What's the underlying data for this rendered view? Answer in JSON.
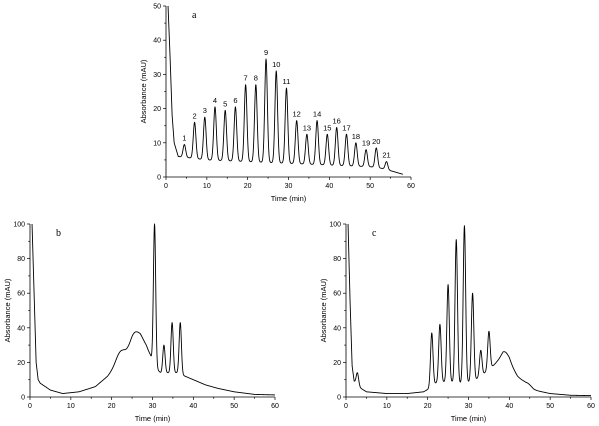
{
  "chart_data": [
    {
      "type": "line",
      "panel_label": "a",
      "xlabel": "Time (min)",
      "ylabel": "Absorbance (mAU)",
      "xlim": [
        0,
        60
      ],
      "ylim": [
        0,
        50
      ],
      "xticks": [
        "0",
        "10",
        "20",
        "30",
        "40",
        "50",
        "60"
      ],
      "yticks": [
        "0",
        "10",
        "20",
        "30",
        "40",
        "50"
      ],
      "grid": false,
      "baseline": [
        [
          0.5,
          50
        ],
        [
          1.0,
          35
        ],
        [
          1.5,
          18
        ],
        [
          2.0,
          10
        ],
        [
          3.0,
          6
        ],
        [
          10,
          5
        ],
        [
          20,
          4.5
        ],
        [
          30,
          4
        ],
        [
          40,
          3.5
        ],
        [
          50,
          3
        ],
        [
          53,
          2.5
        ],
        [
          56,
          1.5
        ],
        [
          58,
          0.8
        ]
      ],
      "peaks": [
        {
          "label": "1",
          "x": 4.5,
          "y": 9.5
        },
        {
          "label": "2",
          "x": 7.0,
          "y": 16
        },
        {
          "label": "3",
          "x": 9.5,
          "y": 17.5
        },
        {
          "label": "4",
          "x": 12.0,
          "y": 20.5
        },
        {
          "label": "5",
          "x": 14.5,
          "y": 19.5
        },
        {
          "label": "6",
          "x": 17.0,
          "y": 20.5
        },
        {
          "label": "7",
          "x": 19.5,
          "y": 27
        },
        {
          "label": "8",
          "x": 22.0,
          "y": 27
        },
        {
          "label": "9",
          "x": 24.5,
          "y": 34.5
        },
        {
          "label": "10",
          "x": 27.0,
          "y": 31
        },
        {
          "label": "11",
          "x": 29.5,
          "y": 26
        },
        {
          "label": "12",
          "x": 32.0,
          "y": 16.5
        },
        {
          "label": "13",
          "x": 34.5,
          "y": 12.5
        },
        {
          "label": "14",
          "x": 37.0,
          "y": 16.5
        },
        {
          "label": "15",
          "x": 39.5,
          "y": 12.5
        },
        {
          "label": "16",
          "x": 41.8,
          "y": 14.5
        },
        {
          "label": "17",
          "x": 44.2,
          "y": 12.5
        },
        {
          "label": "18",
          "x": 46.5,
          "y": 10
        },
        {
          "label": "19",
          "x": 49.0,
          "y": 8
        },
        {
          "label": "20",
          "x": 51.5,
          "y": 8.5
        },
        {
          "label": "21",
          "x": 54.0,
          "y": 4.5
        }
      ]
    },
    {
      "type": "line",
      "panel_label": "b",
      "xlabel": "Time (min)",
      "ylabel": "Absorbance (mAU)",
      "xlim": [
        0,
        60
      ],
      "ylim": [
        0,
        100
      ],
      "xticks": [
        "0",
        "10",
        "20",
        "30",
        "40",
        "50",
        "60"
      ],
      "yticks": [
        "0",
        "20",
        "40",
        "60",
        "80",
        "100"
      ],
      "grid": false,
      "baseline": [
        [
          0.5,
          100
        ],
        [
          1.0,
          60
        ],
        [
          1.5,
          20
        ],
        [
          2.0,
          10
        ],
        [
          2.5,
          8
        ],
        [
          5,
          4
        ],
        [
          8,
          2
        ],
        [
          12,
          3
        ],
        [
          16,
          6
        ],
        [
          19,
          12
        ],
        [
          21,
          18
        ],
        [
          23,
          24
        ],
        [
          25,
          28
        ],
        [
          27,
          30
        ],
        [
          28.5,
          28
        ],
        [
          29.5,
          24
        ],
        [
          30.2,
          18
        ],
        [
          32,
          14
        ],
        [
          34,
          14
        ],
        [
          36,
          14
        ],
        [
          38,
          12
        ],
        [
          40,
          10
        ],
        [
          43,
          7
        ],
        [
          46,
          5
        ],
        [
          50,
          3
        ],
        [
          55,
          1.5
        ],
        [
          60,
          1.2
        ]
      ],
      "peaks": [
        {
          "x": 1.8,
          "y": 12
        },
        {
          "x": 22.0,
          "y": 26
        },
        {
          "x": 25.5,
          "y": 36
        },
        {
          "x": 27.2,
          "y": 34
        },
        {
          "x": 30.5,
          "y": 100
        },
        {
          "x": 32.8,
          "y": 30
        },
        {
          "x": 34.8,
          "y": 43
        },
        {
          "x": 36.8,
          "y": 43
        }
      ]
    },
    {
      "type": "line",
      "panel_label": "c",
      "xlabel": "Time (min)",
      "ylabel": "Absorbance (mAU)",
      "xlim": [
        0,
        60
      ],
      "ylim": [
        0,
        100
      ],
      "xticks": [
        "0",
        "10",
        "20",
        "30",
        "40",
        "50",
        "60"
      ],
      "yticks": [
        "0",
        "20",
        "40",
        "60",
        "80",
        "100"
      ],
      "grid": false,
      "baseline": [
        [
          0.5,
          100
        ],
        [
          1.0,
          55
        ],
        [
          1.5,
          18
        ],
        [
          2.0,
          9
        ],
        [
          3,
          6
        ],
        [
          5,
          3
        ],
        [
          10,
          2
        ],
        [
          15,
          2
        ],
        [
          19,
          3
        ],
        [
          20.5,
          5
        ],
        [
          22,
          8
        ],
        [
          25,
          9
        ],
        [
          28,
          8
        ],
        [
          31,
          9
        ],
        [
          33,
          12
        ],
        [
          35,
          16
        ],
        [
          37,
          20
        ],
        [
          38.5,
          22
        ],
        [
          40,
          20
        ],
        [
          42,
          12
        ],
        [
          44,
          7
        ],
        [
          46,
          4
        ],
        [
          50,
          2
        ],
        [
          55,
          1
        ],
        [
          60,
          0.8
        ]
      ],
      "peaks": [
        {
          "x": 2.8,
          "y": 14
        },
        {
          "x": 21.0,
          "y": 37
        },
        {
          "x": 23.0,
          "y": 42
        },
        {
          "x": 25.0,
          "y": 65
        },
        {
          "x": 27.0,
          "y": 91
        },
        {
          "x": 29.0,
          "y": 99
        },
        {
          "x": 31.0,
          "y": 60
        },
        {
          "x": 33.0,
          "y": 27
        },
        {
          "x": 35.0,
          "y": 38
        },
        {
          "x": 39.0,
          "y": 26
        },
        {
          "x": 44.5,
          "y": 8
        }
      ]
    }
  ]
}
